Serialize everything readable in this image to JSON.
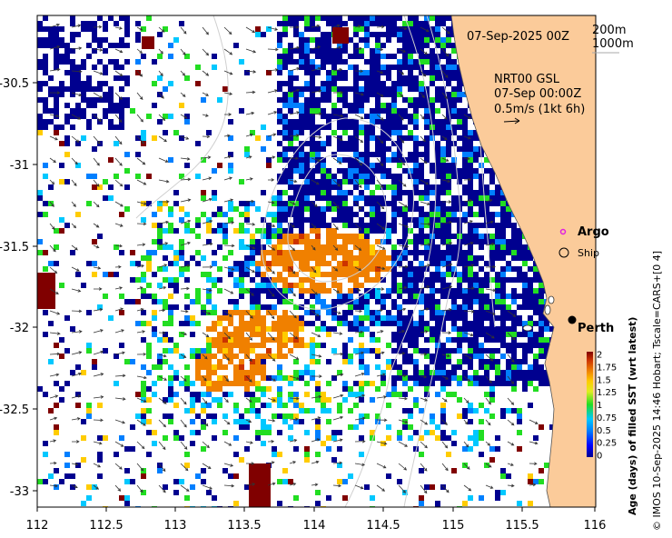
{
  "map": {
    "date_label": "07-Sep-2025 00Z",
    "depth_legend": [
      "200m",
      "1000m"
    ],
    "current_info": [
      "NRT00 GSL",
      "07-Sep 00:00Z",
      "0.5m/s (1kt 6h)"
    ],
    "argo_label": "Argo",
    "ship_label": "Ship",
    "city_label": "Perth",
    "colors": {
      "land": "#fbcb9a",
      "ocean": "#ffffff",
      "argo_marker": "#e020e0"
    }
  },
  "axes": {
    "x_ticks": [
      "112",
      "112.5",
      "113",
      "113.5",
      "114",
      "114.5",
      "115",
      "115.5",
      "116"
    ],
    "y_ticks": [
      "-30.5",
      "-31",
      "-31.5",
      "-32",
      "-32.5",
      "-33"
    ]
  },
  "colorbar": {
    "title": "Age (days) of filled SST (wrt latest)",
    "ticks": [
      "2",
      "1.75",
      "1.5",
      "1.25",
      "1",
      "0.75",
      "0.5",
      "0.25",
      "0"
    ],
    "colors": [
      "#00008f",
      "#0000ff",
      "#007fff",
      "#00c8ff",
      "#22dd22",
      "#ddee22",
      "#ffcc00",
      "#f08000",
      "#cc3300",
      "#800000"
    ]
  },
  "credit": "© IMOS 10-Sep-2025 14:46 Hobart; Tscale=CARS+[0 4]"
}
